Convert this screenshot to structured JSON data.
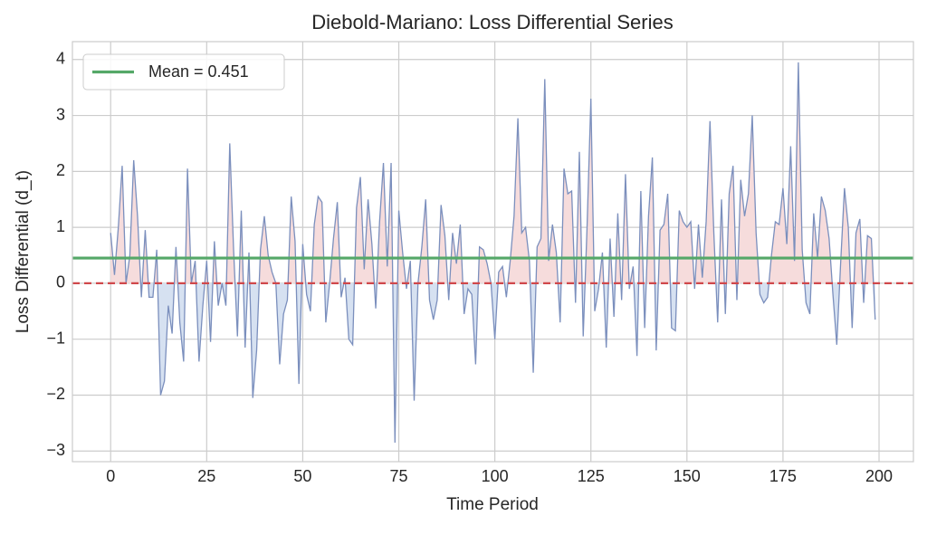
{
  "chart_data": {
    "type": "line",
    "title": "Diebold-Mariano: Loss Differential Series",
    "x_label": "Time Period",
    "y_label": "Loss Differential (d_t)",
    "x": [
      0,
      1,
      2,
      3,
      4,
      5,
      6,
      7,
      8,
      9,
      10,
      11,
      12,
      13,
      14,
      15,
      16,
      17,
      18,
      19,
      20,
      21,
      22,
      23,
      24,
      25,
      26,
      27,
      28,
      29,
      30,
      31,
      32,
      33,
      34,
      35,
      36,
      37,
      38,
      39,
      40,
      41,
      42,
      43,
      44,
      45,
      46,
      47,
      48,
      49,
      50,
      51,
      52,
      53,
      54,
      55,
      56,
      57,
      58,
      59,
      60,
      61,
      62,
      63,
      64,
      65,
      66,
      67,
      68,
      69,
      70,
      71,
      72,
      73,
      74,
      75,
      76,
      77,
      78,
      79,
      80,
      81,
      82,
      83,
      84,
      85,
      86,
      87,
      88,
      89,
      90,
      91,
      92,
      93,
      94,
      95,
      96,
      97,
      98,
      99,
      100,
      101,
      102,
      103,
      104,
      105,
      106,
      107,
      108,
      109,
      110,
      111,
      112,
      113,
      114,
      115,
      116,
      117,
      118,
      119,
      120,
      121,
      122,
      123,
      124,
      125,
      126,
      127,
      128,
      129,
      130,
      131,
      132,
      133,
      134,
      135,
      136,
      137,
      138,
      139,
      140,
      141,
      142,
      143,
      144,
      145,
      146,
      147,
      148,
      149,
      150,
      151,
      152,
      153,
      154,
      155,
      156,
      157,
      158,
      159,
      160,
      161,
      162,
      163,
      164,
      165,
      166,
      167,
      168,
      169,
      170,
      171,
      172,
      173,
      174,
      175,
      176,
      177,
      178,
      179,
      180,
      181,
      182,
      183,
      184,
      185,
      186,
      187,
      188,
      189,
      190,
      191,
      192,
      193,
      194,
      195,
      196,
      197,
      198,
      199
    ],
    "series": [
      {
        "color": "#7b8fbd",
        "fill_positive": "#f6dcdc",
        "fill_negative": "#d6e1f1",
        "values": [
          0.9,
          0.15,
          1.0,
          2.1,
          0.0,
          0.5,
          2.2,
          1.2,
          -0.25,
          0.95,
          -0.25,
          -0.25,
          0.6,
          -2.0,
          -1.75,
          -0.4,
          -0.9,
          0.65,
          -0.7,
          -1.4,
          2.05,
          0.0,
          0.4,
          -1.4,
          -0.4,
          0.4,
          -1.05,
          0.75,
          -0.4,
          0.0,
          -0.4,
          2.5,
          0.6,
          -0.95,
          1.3,
          -1.15,
          0.55,
          -2.05,
          -1.2,
          0.6,
          1.2,
          0.5,
          0.2,
          0.0,
          -1.45,
          -0.55,
          -0.3,
          1.55,
          0.75,
          -1.8,
          0.7,
          -0.2,
          -0.5,
          1.05,
          1.55,
          1.45,
          -0.7,
          0.0,
          0.8,
          1.45,
          -0.25,
          0.1,
          -1.0,
          -1.1,
          1.35,
          1.9,
          0.25,
          1.5,
          0.7,
          -0.45,
          1.1,
          2.15,
          0.3,
          2.15,
          -2.85,
          1.3,
          0.55,
          -0.1,
          0.4,
          -2.1,
          0.0,
          0.65,
          1.5,
          -0.3,
          -0.65,
          -0.3,
          1.4,
          0.85,
          -0.3,
          0.9,
          0.35,
          1.05,
          -0.55,
          -0.1,
          -0.2,
          -1.45,
          0.65,
          0.6,
          0.35,
          0.0,
          -1.0,
          0.2,
          0.3,
          -0.25,
          0.4,
          1.2,
          2.95,
          0.9,
          1.0,
          0.4,
          -1.6,
          0.65,
          0.8,
          3.65,
          0.4,
          1.05,
          0.55,
          -0.7,
          2.05,
          1.6,
          1.65,
          -0.35,
          2.35,
          -0.95,
          1.0,
          3.3,
          -0.5,
          -0.1,
          0.55,
          -1.15,
          0.8,
          -0.6,
          1.25,
          -0.3,
          1.95,
          -0.1,
          0.3,
          -1.3,
          1.65,
          -0.8,
          1.2,
          2.25,
          -1.2,
          0.95,
          1.05,
          1.6,
          -0.8,
          -0.85,
          1.3,
          1.1,
          1.0,
          1.1,
          -0.1,
          1.05,
          0.1,
          1.1,
          2.9,
          0.9,
          -0.7,
          1.5,
          -0.55,
          1.6,
          2.1,
          -0.3,
          1.85,
          1.2,
          1.6,
          3.0,
          0.9,
          -0.2,
          -0.35,
          -0.25,
          0.5,
          1.1,
          1.05,
          1.7,
          0.7,
          2.45,
          0.4,
          3.95,
          0.6,
          -0.35,
          -0.55,
          1.25,
          0.45,
          1.55,
          1.3,
          0.8,
          -0.2,
          -1.1,
          0.35,
          1.7,
          1.0,
          -0.8,
          0.9,
          1.15,
          -0.35,
          0.85,
          0.8,
          -0.65
        ]
      }
    ],
    "mean": {
      "value": 0.451,
      "label": "Mean = 0.451",
      "color": "#55a868"
    },
    "reference_line": {
      "value": 0,
      "color": "#d0484b"
    },
    "xlim": [
      -9.95,
      208.95
    ],
    "ylim": [
      -3.19,
      4.32
    ],
    "xticks": [
      0,
      25,
      50,
      75,
      100,
      125,
      150,
      175,
      200
    ],
    "yticks": [
      {
        "value": -3,
        "label": "−3"
      },
      {
        "value": -2,
        "label": "−2"
      },
      {
        "value": -1,
        "label": "−1"
      },
      0,
      1,
      2,
      3,
      4
    ],
    "grid": true,
    "legend": "upper left"
  }
}
